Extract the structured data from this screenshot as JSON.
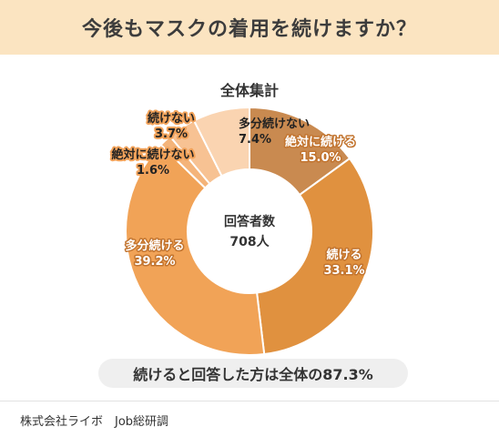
{
  "header": {
    "title": "今後もマスクの着用を続けますか？"
  },
  "chart_data": {
    "type": "pie",
    "title": "全体集計",
    "center_label": "回答者数",
    "center_value": "708人",
    "slices": [
      {
        "label": "絶対に続ける",
        "value": 15.0,
        "display": "15.0%",
        "color": "#c98a50"
      },
      {
        "label": "続ける",
        "value": 33.1,
        "display": "33.1%",
        "color": "#e0913f"
      },
      {
        "label": "多分続ける",
        "value": 39.2,
        "display": "39.2%",
        "color": "#f1a357"
      },
      {
        "label": "絶対に続けない",
        "value": 1.6,
        "display": "1.6%",
        "color": "#f4b47a"
      },
      {
        "label": "続けない",
        "value": 3.7,
        "display": "3.7%",
        "color": "#f7c293"
      },
      {
        "label": "多分続けない",
        "value": 7.4,
        "display": "7.4%",
        "color": "#fad4b1"
      }
    ]
  },
  "summary": {
    "text": "続けると回答した方は全体の87.3%"
  },
  "footer": {
    "source": "株式会社ライボ　Job総研調"
  }
}
